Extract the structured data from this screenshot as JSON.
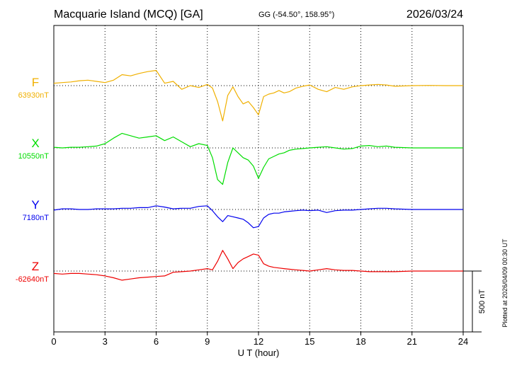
{
  "header": {
    "station": "Macquarie Island (MCQ)  [GA]",
    "coords": "GG (-54.50°, 158.95°)",
    "date": "2026/03/24"
  },
  "plotted_note": "Plotted at 2026/04/09 00:30 UT",
  "chart_data": {
    "type": "line",
    "title": "Macquarie Island (MCQ)  [GA]",
    "xlabel": "U T (hour)",
    "x_ticks": [
      "0",
      "3",
      "6",
      "9",
      "12",
      "15",
      "18",
      "21",
      "24"
    ],
    "xlim": [
      0,
      24
    ],
    "grid": true,
    "scale_bar": "500 nT",
    "scale_bar_nT": 500,
    "series": [
      {
        "name": "F",
        "baseline": "63930nT",
        "baseline_nT": 63930,
        "color": "#f0b000",
        "points": [
          [
            0,
            20
          ],
          [
            0.5,
            25
          ],
          [
            1,
            30
          ],
          [
            1.5,
            40
          ],
          [
            2,
            45
          ],
          [
            2.5,
            35
          ],
          [
            3,
            25
          ],
          [
            3.5,
            45
          ],
          [
            4,
            90
          ],
          [
            4.5,
            80
          ],
          [
            5,
            100
          ],
          [
            5.5,
            115
          ],
          [
            6,
            125
          ],
          [
            6.5,
            20
          ],
          [
            7,
            35
          ],
          [
            7.5,
            -30
          ],
          [
            8,
            0
          ],
          [
            8.5,
            -15
          ],
          [
            9,
            10
          ],
          [
            9.3,
            -20
          ],
          [
            9.6,
            -130
          ],
          [
            9.9,
            -290
          ],
          [
            10.2,
            -80
          ],
          [
            10.5,
            -10
          ],
          [
            10.8,
            -90
          ],
          [
            11.1,
            -150
          ],
          [
            11.4,
            -130
          ],
          [
            11.7,
            -180
          ],
          [
            12,
            -240
          ],
          [
            12.3,
            -90
          ],
          [
            12.6,
            -70
          ],
          [
            12.9,
            -60
          ],
          [
            13.2,
            -40
          ],
          [
            13.5,
            -60
          ],
          [
            13.8,
            -50
          ],
          [
            14.2,
            -20
          ],
          [
            14.6,
            -5
          ],
          [
            15,
            5
          ],
          [
            15.5,
            -30
          ],
          [
            16,
            -50
          ],
          [
            16.5,
            -15
          ],
          [
            17,
            -30
          ],
          [
            17.5,
            -10
          ],
          [
            18,
            0
          ],
          [
            18.5,
            5
          ],
          [
            19,
            10
          ],
          [
            19.5,
            5
          ],
          [
            20,
            -5
          ],
          [
            21,
            0
          ],
          [
            22,
            2
          ],
          [
            23,
            0
          ],
          [
            24,
            0
          ]
        ]
      },
      {
        "name": "X",
        "baseline": "10550nT",
        "baseline_nT": 10550,
        "color": "#00dd00",
        "points": [
          [
            0,
            5
          ],
          [
            0.5,
            0
          ],
          [
            1,
            5
          ],
          [
            1.5,
            5
          ],
          [
            2,
            10
          ],
          [
            2.5,
            15
          ],
          [
            3,
            35
          ],
          [
            3.5,
            80
          ],
          [
            4,
            120
          ],
          [
            4.5,
            100
          ],
          [
            5,
            80
          ],
          [
            5.5,
            90
          ],
          [
            6,
            100
          ],
          [
            6.5,
            60
          ],
          [
            7,
            90
          ],
          [
            7.5,
            50
          ],
          [
            8,
            10
          ],
          [
            8.5,
            35
          ],
          [
            9,
            20
          ],
          [
            9.3,
            -80
          ],
          [
            9.6,
            -260
          ],
          [
            9.9,
            -300
          ],
          [
            10.2,
            -120
          ],
          [
            10.5,
            0
          ],
          [
            10.8,
            -40
          ],
          [
            11.1,
            -80
          ],
          [
            11.4,
            -100
          ],
          [
            11.7,
            -150
          ],
          [
            12,
            -250
          ],
          [
            12.3,
            -160
          ],
          [
            12.6,
            -90
          ],
          [
            12.9,
            -70
          ],
          [
            13.2,
            -50
          ],
          [
            13.5,
            -40
          ],
          [
            13.8,
            -20
          ],
          [
            14.2,
            -10
          ],
          [
            14.6,
            -5
          ],
          [
            15,
            0
          ],
          [
            15.5,
            5
          ],
          [
            16,
            10
          ],
          [
            16.5,
            0
          ],
          [
            17,
            -10
          ],
          [
            17.5,
            -5
          ],
          [
            18,
            15
          ],
          [
            18.5,
            20
          ],
          [
            19,
            10
          ],
          [
            19.5,
            15
          ],
          [
            20,
            5
          ],
          [
            21,
            0
          ],
          [
            22,
            0
          ],
          [
            23,
            0
          ],
          [
            24,
            0
          ]
        ]
      },
      {
        "name": "Y",
        "baseline": "7180nT",
        "baseline_nT": 7180,
        "color": "#0000ee",
        "points": [
          [
            0,
            -5
          ],
          [
            0.5,
            5
          ],
          [
            1,
            5
          ],
          [
            1.5,
            0
          ],
          [
            2,
            0
          ],
          [
            2.5,
            5
          ],
          [
            3,
            5
          ],
          [
            3.5,
            5
          ],
          [
            4,
            10
          ],
          [
            4.5,
            10
          ],
          [
            5,
            15
          ],
          [
            5.5,
            15
          ],
          [
            6,
            30
          ],
          [
            6.5,
            20
          ],
          [
            7,
            5
          ],
          [
            7.5,
            10
          ],
          [
            8,
            10
          ],
          [
            8.5,
            25
          ],
          [
            9,
            30
          ],
          [
            9.3,
            -10
          ],
          [
            9.6,
            -60
          ],
          [
            9.9,
            -100
          ],
          [
            10.2,
            -50
          ],
          [
            10.5,
            -60
          ],
          [
            10.8,
            -70
          ],
          [
            11.1,
            -80
          ],
          [
            11.4,
            -110
          ],
          [
            11.7,
            -150
          ],
          [
            12,
            -140
          ],
          [
            12.3,
            -70
          ],
          [
            12.6,
            -40
          ],
          [
            12.9,
            -30
          ],
          [
            13.2,
            -30
          ],
          [
            13.5,
            -20
          ],
          [
            13.8,
            -15
          ],
          [
            14.2,
            -10
          ],
          [
            14.6,
            -5
          ],
          [
            15,
            -10
          ],
          [
            15.5,
            -5
          ],
          [
            16,
            -25
          ],
          [
            16.5,
            -10
          ],
          [
            17,
            -5
          ],
          [
            17.5,
            -5
          ],
          [
            18,
            0
          ],
          [
            18.5,
            5
          ],
          [
            19,
            10
          ],
          [
            19.5,
            10
          ],
          [
            20,
            5
          ],
          [
            21,
            0
          ],
          [
            22,
            0
          ],
          [
            23,
            0
          ],
          [
            24,
            0
          ]
        ]
      },
      {
        "name": "Z",
        "baseline": "-62640nT",
        "baseline_nT": -62640,
        "color": "#ee0000",
        "points": [
          [
            0,
            -20
          ],
          [
            0.5,
            -25
          ],
          [
            1,
            -20
          ],
          [
            1.5,
            -20
          ],
          [
            2,
            -25
          ],
          [
            2.5,
            -30
          ],
          [
            3,
            -40
          ],
          [
            3.5,
            -55
          ],
          [
            4,
            -75
          ],
          [
            4.5,
            -65
          ],
          [
            5,
            -55
          ],
          [
            5.5,
            -50
          ],
          [
            6,
            -45
          ],
          [
            6.5,
            -40
          ],
          [
            7,
            -10
          ],
          [
            7.5,
            -5
          ],
          [
            8,
            0
          ],
          [
            8.5,
            10
          ],
          [
            9,
            20
          ],
          [
            9.3,
            10
          ],
          [
            9.6,
            80
          ],
          [
            9.9,
            170
          ],
          [
            10.2,
            100
          ],
          [
            10.5,
            20
          ],
          [
            10.8,
            70
          ],
          [
            11.1,
            100
          ],
          [
            11.4,
            120
          ],
          [
            11.7,
            140
          ],
          [
            12,
            130
          ],
          [
            12.3,
            60
          ],
          [
            12.6,
            40
          ],
          [
            12.9,
            30
          ],
          [
            13.2,
            25
          ],
          [
            13.5,
            20
          ],
          [
            13.8,
            15
          ],
          [
            14.2,
            10
          ],
          [
            14.6,
            5
          ],
          [
            15,
            0
          ],
          [
            15.5,
            10
          ],
          [
            16,
            20
          ],
          [
            16.5,
            10
          ],
          [
            17,
            5
          ],
          [
            17.5,
            5
          ],
          [
            18,
            0
          ],
          [
            18.5,
            -5
          ],
          [
            19,
            -5
          ],
          [
            19.5,
            -5
          ],
          [
            20,
            -5
          ],
          [
            21,
            0
          ],
          [
            22,
            0
          ],
          [
            23,
            0
          ],
          [
            24,
            0
          ]
        ]
      }
    ]
  }
}
